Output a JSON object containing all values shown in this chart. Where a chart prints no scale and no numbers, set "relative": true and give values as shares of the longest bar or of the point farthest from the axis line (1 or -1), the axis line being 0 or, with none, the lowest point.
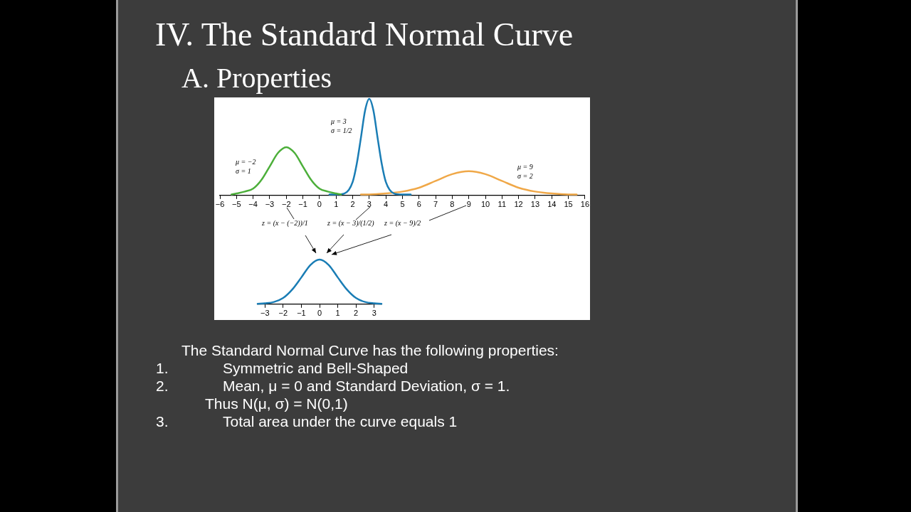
{
  "chart_data": [
    {
      "type": "line",
      "title": "IV. The Standard Normal Curve",
      "subtitle": "A. Properties",
      "relative": true,
      "xlim": [
        -6,
        16
      ],
      "xticks": [
        -6,
        -5,
        -4,
        -3,
        -2,
        -1,
        0,
        1,
        2,
        3,
        4,
        5,
        6,
        7,
        8,
        9,
        10,
        11,
        12,
        13,
        14,
        15,
        16
      ],
      "marker": "none",
      "line_style": "solid",
      "series": [
        {
          "color": "#4caf3a",
          "x": [
            -5.3,
            -5,
            -4.5,
            -4,
            -3.5,
            -3,
            -2.5,
            -2,
            -1.5,
            -1,
            -0.5,
            0,
            0.5,
            1,
            1.3
          ],
          "values": [
            0.01,
            0.02,
            0.04,
            0.07,
            0.16,
            0.3,
            0.44,
            0.5,
            0.44,
            0.3,
            0.16,
            0.07,
            0.04,
            0.02,
            0.01
          ]
        },
        {
          "color": "#1a7db5",
          "x": [
            0.6,
            1,
            1.5,
            2,
            2.25,
            2.5,
            2.75,
            3,
            3.25,
            3.5,
            3.75,
            4,
            4.5,
            5,
            5.5
          ],
          "values": [
            0.01,
            0.01,
            0.02,
            0.14,
            0.33,
            0.6,
            0.88,
            1,
            0.88,
            0.6,
            0.33,
            0.14,
            0.02,
            0.01,
            0.01
          ]
        },
        {
          "color": "#f0a848",
          "x": [
            2.5,
            3,
            4,
            5,
            6,
            7,
            8,
            9,
            10,
            11,
            12,
            13,
            14,
            15,
            15.5
          ],
          "values": [
            0.01,
            0.01,
            0.02,
            0.04,
            0.08,
            0.15,
            0.22,
            0.25,
            0.22,
            0.15,
            0.08,
            0.04,
            0.02,
            0.01,
            0.01
          ]
        }
      ],
      "annotations": [
        "μ = −2\nσ = 1",
        "μ = 3\nσ = 1/2",
        "μ = 9\nσ = 2",
        "z = (x − (−2))/1",
        "z = (x − 3)/(1/2)",
        "z = (x − 9)/2"
      ]
    },
    {
      "type": "line",
      "relative": true,
      "xlim": [
        -3.4,
        3.4
      ],
      "xticks": [
        -3,
        -2,
        -1,
        0,
        1,
        2,
        3
      ],
      "marker": "none",
      "line_style": "solid",
      "series": [
        {
          "color": "#1a7db5",
          "x": [
            -3.4,
            -3,
            -2.5,
            -2,
            -1.5,
            -1,
            -0.5,
            0,
            0.5,
            1,
            1.5,
            2,
            2.5,
            3,
            3.4
          ],
          "values": [
            0.01,
            0.02,
            0.05,
            0.14,
            0.33,
            0.6,
            0.88,
            1,
            0.88,
            0.6,
            0.33,
            0.14,
            0.05,
            0.02,
            0.01
          ]
        }
      ],
      "annotations": [
        "The Standard Normal Curve has the following properties:",
        "1.",
        "Symmetric and Bell-Shaped",
        "2.",
        "Mean, μ = 0 and Standard Deviation, σ = 1.",
        "Thus N(μ, σ) = N(0,1)",
        "3.",
        "Total area under the curve equals 1"
      ]
    }
  ]
}
